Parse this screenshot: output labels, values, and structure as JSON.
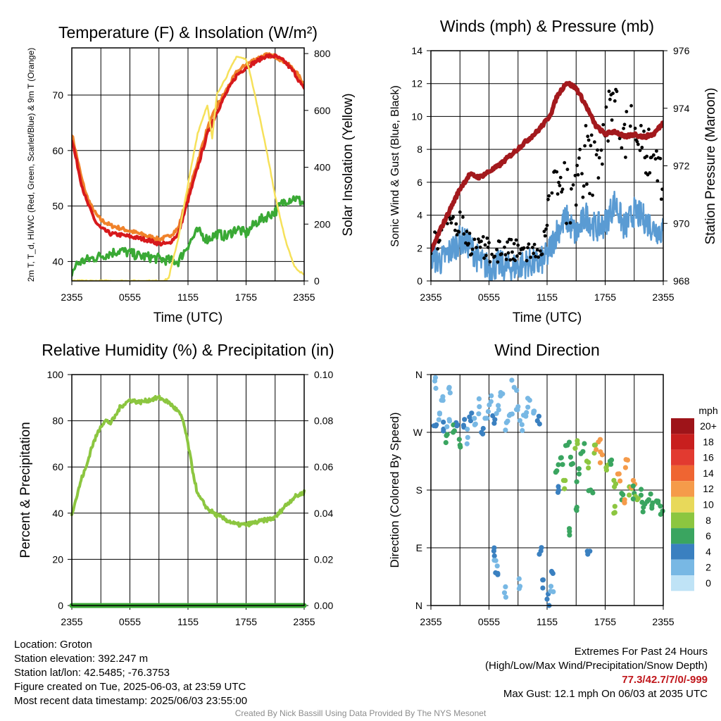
{
  "chart_data": [
    {
      "type": "line",
      "title": "Temperature (F) & Insolation (W/m²)",
      "xlabel": "Time (UTC)",
      "ylabel": "2m T, T_d, HI/WC (Red, Green, Scarlet/Blue) & 9m T (Orange)",
      "ylabel_right": "Solar Insolation (Yellow)",
      "x_ticks": [
        "2355",
        "0555",
        "1155",
        "1755",
        "2355"
      ],
      "x_hours": [
        0,
        6,
        12,
        18,
        24
      ],
      "y_ticks": [
        40,
        50,
        60,
        70
      ],
      "y_right_ticks": [
        0,
        200,
        400,
        600,
        800
      ],
      "xlim": [
        0,
        24
      ],
      "ylim": [
        36.5,
        78.5
      ],
      "ylim_right": [
        0,
        820
      ],
      "grid": true,
      "series": [
        {
          "axis": "left",
          "color": "#f0822a",
          "x": [
            0,
            0.5,
            1,
            1.5,
            2,
            2.5,
            3,
            3.5,
            4,
            5,
            6,
            7,
            8,
            9,
            10,
            11,
            12,
            13,
            14,
            15,
            16,
            17,
            18,
            19,
            20,
            21,
            22,
            23,
            24
          ],
          "y": [
            63,
            59,
            55,
            52,
            50,
            48.5,
            47.5,
            47,
            46.5,
            46,
            45.5,
            45,
            44.5,
            44,
            44.5,
            46,
            52,
            58,
            64,
            68,
            71,
            74,
            75.5,
            76.5,
            77.2,
            77,
            76,
            74.5,
            72
          ]
        },
        {
          "axis": "left",
          "color": "#d7191c",
          "x": [
            0,
            0.5,
            1,
            1.5,
            2,
            2.5,
            3,
            3.5,
            4,
            5,
            6,
            7,
            8,
            9,
            10,
            11,
            12,
            13,
            14,
            15,
            16,
            17,
            18,
            19,
            20,
            21,
            22,
            23,
            24
          ],
          "y": [
            62,
            58,
            54,
            51,
            49,
            47,
            46,
            45.5,
            45,
            44.8,
            44.5,
            44.2,
            43.8,
            43.2,
            43.2,
            45,
            51,
            57,
            63,
            67,
            70.5,
            73.5,
            75,
            76,
            77,
            77,
            76,
            74,
            71
          ]
        },
        {
          "axis": "left",
          "color": "#3aa935",
          "x": [
            0,
            0.5,
            1,
            2,
            3,
            4,
            5,
            6,
            7,
            8,
            9,
            10,
            11,
            12,
            13,
            14,
            15,
            16,
            17,
            18,
            19,
            20,
            21,
            22,
            23,
            24
          ],
          "y": [
            38,
            39.5,
            40,
            40.5,
            41,
            41.5,
            42,
            41.5,
            41,
            40.8,
            40.5,
            40.2,
            40,
            43,
            45.5,
            44,
            45,
            44.5,
            46,
            45,
            47,
            48,
            49,
            51,
            51.5,
            50.5
          ]
        },
        {
          "axis": "right",
          "color": "#f6e15a",
          "x": [
            0,
            1,
            2,
            3,
            4,
            5,
            6,
            7,
            8,
            9,
            9.5,
            10,
            11,
            12,
            13,
            14,
            14.5,
            15,
            16,
            17,
            18,
            18.5,
            19,
            20,
            21,
            22,
            23,
            24
          ],
          "y": [
            0,
            0,
            0,
            0,
            0,
            0,
            0,
            0,
            0,
            0,
            0,
            10,
            150,
            340,
            520,
            620,
            500,
            660,
            720,
            790,
            780,
            720,
            640,
            480,
            300,
            150,
            50,
            20
          ]
        }
      ]
    },
    {
      "type": "scatter",
      "title": "Winds (mph) & Pressure (mb)",
      "xlabel": "Time (UTC)",
      "ylabel": "Sonic Wind & Gust (Blue, Black)",
      "ylabel_right": "Station Pressure (Maroon)",
      "x_ticks": [
        "2355",
        "0555",
        "1155",
        "1755",
        "2355"
      ],
      "x_hours": [
        0,
        6,
        12,
        18,
        24
      ],
      "y_ticks": [
        0,
        2,
        4,
        6,
        8,
        10,
        12,
        14
      ],
      "y_right_ticks": [
        968,
        970,
        972,
        974,
        976
      ],
      "xlim": [
        0,
        24
      ],
      "ylim": [
        0,
        14
      ],
      "ylim_right": [
        968,
        976
      ],
      "grid": true,
      "wind_x": [
        0,
        1,
        2,
        3,
        4,
        5,
        6,
        7,
        8,
        9,
        10,
        11,
        12,
        13,
        14,
        15,
        16,
        17,
        18,
        19,
        20,
        21,
        22,
        23,
        24
      ],
      "wind_y": [
        1.5,
        1.2,
        1.8,
        2.5,
        2.2,
        1.2,
        0.8,
        1.0,
        0.8,
        0.9,
        1.1,
        1.0,
        1.5,
        3.0,
        3.8,
        2.8,
        4.0,
        3.2,
        3.5,
        4.8,
        3.2,
        4.2,
        3.8,
        3.2,
        3.0
      ],
      "gust_x": [
        0,
        1,
        2,
        3,
        4,
        5,
        6,
        7,
        8,
        9,
        10,
        11,
        12,
        13,
        14,
        15,
        16,
        17,
        18,
        19,
        20,
        21,
        22,
        23,
        24
      ],
      "gust_y": [
        2.2,
        2.8,
        3.2,
        3.6,
        2.4,
        2.0,
        1.8,
        1.9,
        1.8,
        1.7,
        1.8,
        1.6,
        3.0,
        6.0,
        5.2,
        6.0,
        7.5,
        6.8,
        9.5,
        10.5,
        8.5,
        10.0,
        8.0,
        7.2,
        6.5
      ],
      "pressure_x": [
        0,
        1,
        2,
        3,
        4,
        5,
        6,
        7,
        8,
        9,
        10,
        11,
        12,
        12.5,
        13,
        14,
        15,
        16,
        17,
        18,
        19,
        20,
        21,
        22,
        23,
        24
      ],
      "pressure_y": [
        969.0,
        969.8,
        970.5,
        971.2,
        971.7,
        971.6,
        971.8,
        972.0,
        972.3,
        972.6,
        972.9,
        973.2,
        973.6,
        973.9,
        974.4,
        974.9,
        974.7,
        974.1,
        973.4,
        973.1,
        973.2,
        973.0,
        973.1,
        973.0,
        973.1,
        973.5
      ]
    },
    {
      "type": "line",
      "title": "Relative Humidity (%) & Precipitation (in)",
      "xlabel": "",
      "ylabel": "Percent & Precipitation",
      "x_ticks": [
        "2355",
        "0555",
        "1155",
        "1755",
        "2355"
      ],
      "x_hours": [
        0,
        6,
        12,
        18,
        24
      ],
      "y_ticks": [
        0,
        20,
        40,
        60,
        80,
        100
      ],
      "y_right_ticks": [
        "0.00",
        "0.02",
        "0.04",
        "0.06",
        "0.08",
        "0.10"
      ],
      "xlim": [
        0,
        24
      ],
      "ylim": [
        0,
        100
      ],
      "ylim_right": [
        0,
        0.1
      ],
      "grid": true,
      "series": [
        {
          "name": "RH",
          "color": "#8cc640",
          "x": [
            0,
            0.5,
            1,
            1.5,
            2,
            2.5,
            3,
            3.5,
            4,
            4.5,
            5,
            6,
            7,
            8,
            9,
            10,
            11,
            11.5,
            12,
            12.5,
            13,
            14,
            15,
            16,
            17,
            18,
            19,
            20,
            21,
            22,
            23,
            24
          ],
          "y": [
            40,
            47,
            55,
            60,
            68,
            73,
            78,
            80,
            79,
            82,
            86,
            89,
            88,
            89,
            90,
            88,
            84,
            80,
            70,
            58,
            48,
            42,
            39,
            37,
            35,
            35,
            36,
            37,
            38,
            43,
            47,
            49
          ]
        },
        {
          "name": "Precip",
          "color": "#3aa935",
          "x": [
            0,
            24
          ],
          "y": [
            0,
            0
          ]
        }
      ]
    },
    {
      "type": "scatter",
      "title": "Wind Direction",
      "xlabel": "",
      "ylabel": "Direction (Colored By Speed)",
      "x_ticks": [
        "2355",
        "0555",
        "1155",
        "1755",
        "2355"
      ],
      "x_hours": [
        0,
        6,
        12,
        18,
        24
      ],
      "y_ticks": [
        "N",
        "E",
        "S",
        "W",
        "N"
      ],
      "y_deg": [
        0,
        90,
        180,
        270,
        360
      ],
      "xlim": [
        0,
        24
      ],
      "ylim": [
        0,
        360
      ],
      "grid": true,
      "colorbar_title": "mph",
      "colorbar_labels": [
        "20+",
        "18",
        "16",
        "14",
        "12",
        "10",
        "8",
        "6",
        "4",
        "2",
        "0"
      ],
      "colorbar_colors": [
        "#9e1419",
        "#c81f1e",
        "#e23a30",
        "#ef6532",
        "#f59b4a",
        "#e8d95a",
        "#8cc640",
        "#3aa560",
        "#3a80c0",
        "#78b8e4",
        "#bfe3f6"
      ],
      "points": [
        [
          0.5,
          280,
          2
        ],
        [
          0.9,
          300,
          1
        ],
        [
          1.3,
          275,
          2
        ],
        [
          1.6,
          265,
          3
        ],
        [
          1.9,
          290,
          1
        ],
        [
          2.3,
          270,
          3
        ],
        [
          2.6,
          285,
          2
        ],
        [
          3.0,
          250,
          3
        ],
        [
          3.4,
          278,
          2
        ],
        [
          3.8,
          262,
          1
        ],
        [
          4.2,
          300,
          2
        ],
        [
          4.6,
          283,
          1
        ],
        [
          5.0,
          310,
          1
        ],
        [
          5.4,
          276,
          2
        ],
        [
          5.8,
          292,
          1
        ],
        [
          6.2,
          318,
          1
        ],
        [
          6.6,
          290,
          2
        ],
        [
          7.0,
          305,
          1
        ],
        [
          7.4,
          330,
          1
        ],
        [
          7.8,
          285,
          1
        ],
        [
          8.2,
          298,
          1
        ],
        [
          8.6,
          340,
          1
        ],
        [
          9.0,
          310,
          1
        ],
        [
          9.4,
          282,
          1
        ],
        [
          9.8,
          295,
          1
        ],
        [
          10.2,
          320,
          1
        ],
        [
          10.6,
          300,
          1
        ],
        [
          11.0,
          288,
          2
        ],
        [
          0.4,
          350,
          1
        ],
        [
          1.1,
          320,
          1
        ],
        [
          1.9,
          340,
          1
        ],
        [
          6.5,
          85,
          2
        ],
        [
          6.7,
          70,
          1
        ],
        [
          6.9,
          50,
          2
        ],
        [
          7.6,
          20,
          1
        ],
        [
          9.2,
          30,
          1
        ],
        [
          11.2,
          80,
          2
        ],
        [
          11.6,
          40,
          2
        ],
        [
          12.0,
          10,
          2
        ],
        [
          12.4,
          30,
          1
        ],
        [
          12.6,
          50,
          2
        ],
        [
          13.0,
          210,
          3
        ],
        [
          13.4,
          230,
          3
        ],
        [
          13.7,
          195,
          4
        ],
        [
          14.1,
          250,
          3
        ],
        [
          14.5,
          220,
          3
        ],
        [
          14.9,
          245,
          4
        ],
        [
          15.3,
          205,
          3
        ],
        [
          15.7,
          240,
          3
        ],
        [
          16.1,
          225,
          4
        ],
        [
          16.5,
          180,
          3
        ],
        [
          16.9,
          250,
          4
        ],
        [
          17.3,
          255,
          6
        ],
        [
          17.7,
          235,
          6
        ],
        [
          18.1,
          215,
          4
        ],
        [
          18.5,
          225,
          3
        ],
        [
          18.9,
          195,
          4
        ],
        [
          19.3,
          205,
          6
        ],
        [
          19.7,
          175,
          3
        ],
        [
          20.1,
          215,
          6
        ],
        [
          20.5,
          185,
          4
        ],
        [
          20.9,
          195,
          6
        ],
        [
          21.3,
          165,
          4
        ],
        [
          21.7,
          172,
          3
        ],
        [
          22.1,
          158,
          3
        ],
        [
          22.5,
          165,
          3
        ],
        [
          22.9,
          160,
          3
        ],
        [
          23.3,
          163,
          3
        ],
        [
          23.7,
          155,
          3
        ],
        [
          14.3,
          120,
          3
        ],
        [
          16.2,
          80,
          2
        ],
        [
          13.2,
          180,
          2
        ],
        [
          15.0,
          150,
          3
        ],
        [
          19.0,
          145,
          4
        ],
        [
          20.0,
          160,
          6
        ],
        [
          21.0,
          175,
          3
        ]
      ]
    }
  ],
  "info_left": [
    "Location: Groton",
    "Station elevation: 392.247 m",
    "Station lat/lon: 42.5485; -76.3753",
    "Figure created on Tue, 2025-06-03, at 23:59 UTC",
    "Most recent data timestamp: 2025/06/03 23:55:00"
  ],
  "extremes": {
    "title": "Extremes For Past 24 Hours",
    "subtitle": "(High/Low/Max Wind/Precipitation/Snow Depth)",
    "values": "77.3/42.7/7/0/-999",
    "max_gust": "Max Gust: 12.1 mph On 06/03 at 2035 UTC"
  },
  "credit": "Created By Nick Bassill Using Data Provided By The NYS Mesonet"
}
